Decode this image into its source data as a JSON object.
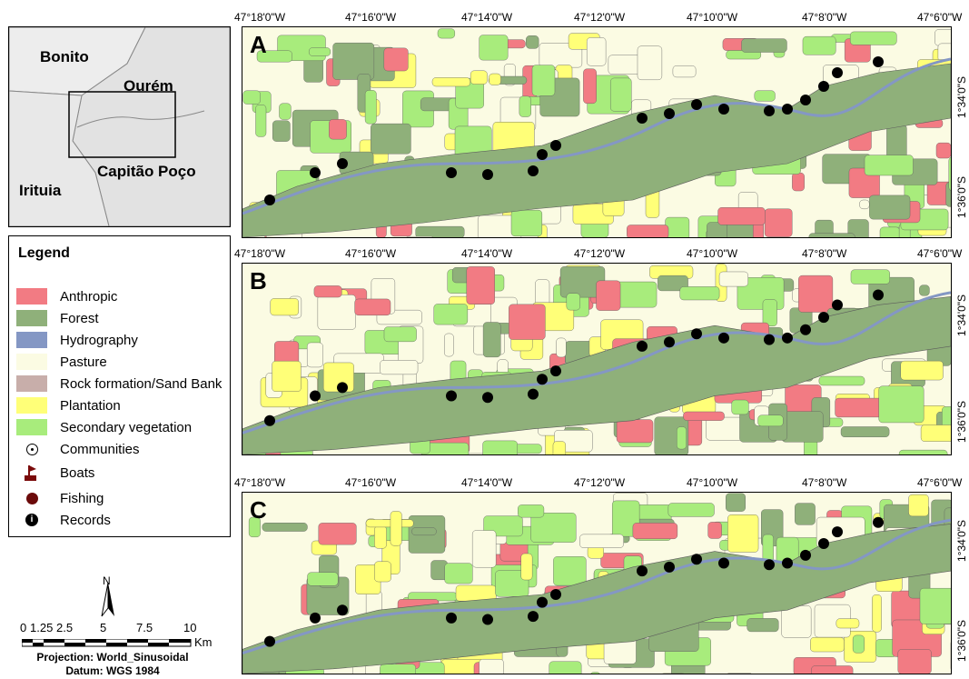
{
  "inset": {
    "labels": [
      "Bonito",
      "Ourém",
      "Irituia",
      "Capitão Poço"
    ]
  },
  "legend": {
    "title": "Legend",
    "items": [
      {
        "label": "Anthropic",
        "color": "#f27b83"
      },
      {
        "label": "Forest",
        "color": "#8fb07a"
      },
      {
        "label": "Hydrography",
        "color": "#8497c4"
      },
      {
        "label": "Pasture",
        "color": "#fbfbe3"
      },
      {
        "label": "Rock formation/Sand Bank",
        "color": "#c8aeaa"
      },
      {
        "label": "Plantation",
        "color": "#ffff78"
      },
      {
        "label": "Secondary vegetation",
        "color": "#a8ec7c"
      },
      {
        "label": "Communities",
        "icon": "community-icon"
      },
      {
        "label": "Boats",
        "icon": "boat-flag-icon"
      },
      {
        "label": "Fishing",
        "icon": "fishing-dot-icon"
      },
      {
        "label": "Records",
        "icon": "records-icon"
      }
    ]
  },
  "panels": [
    {
      "letter": "A"
    },
    {
      "letter": "B"
    },
    {
      "letter": "C"
    }
  ],
  "lon_ticks": [
    "47°18'0\"W",
    "47°16'0\"W",
    "47°14'0\"W",
    "47°12'0\"W",
    "47°10'0\"W",
    "47°8'0\"W",
    "47°6'0\"W"
  ],
  "lat_ticks": [
    "1°34'0\"S",
    "1°36'0\"S"
  ],
  "scale": {
    "north": "N",
    "ticks": [
      "0",
      "1.25",
      "2.5",
      "5",
      "7.5",
      "10"
    ],
    "unit": "Km",
    "projection": "Projection: World_Sinusoidal",
    "datum": "Datum: WGS  1984"
  }
}
